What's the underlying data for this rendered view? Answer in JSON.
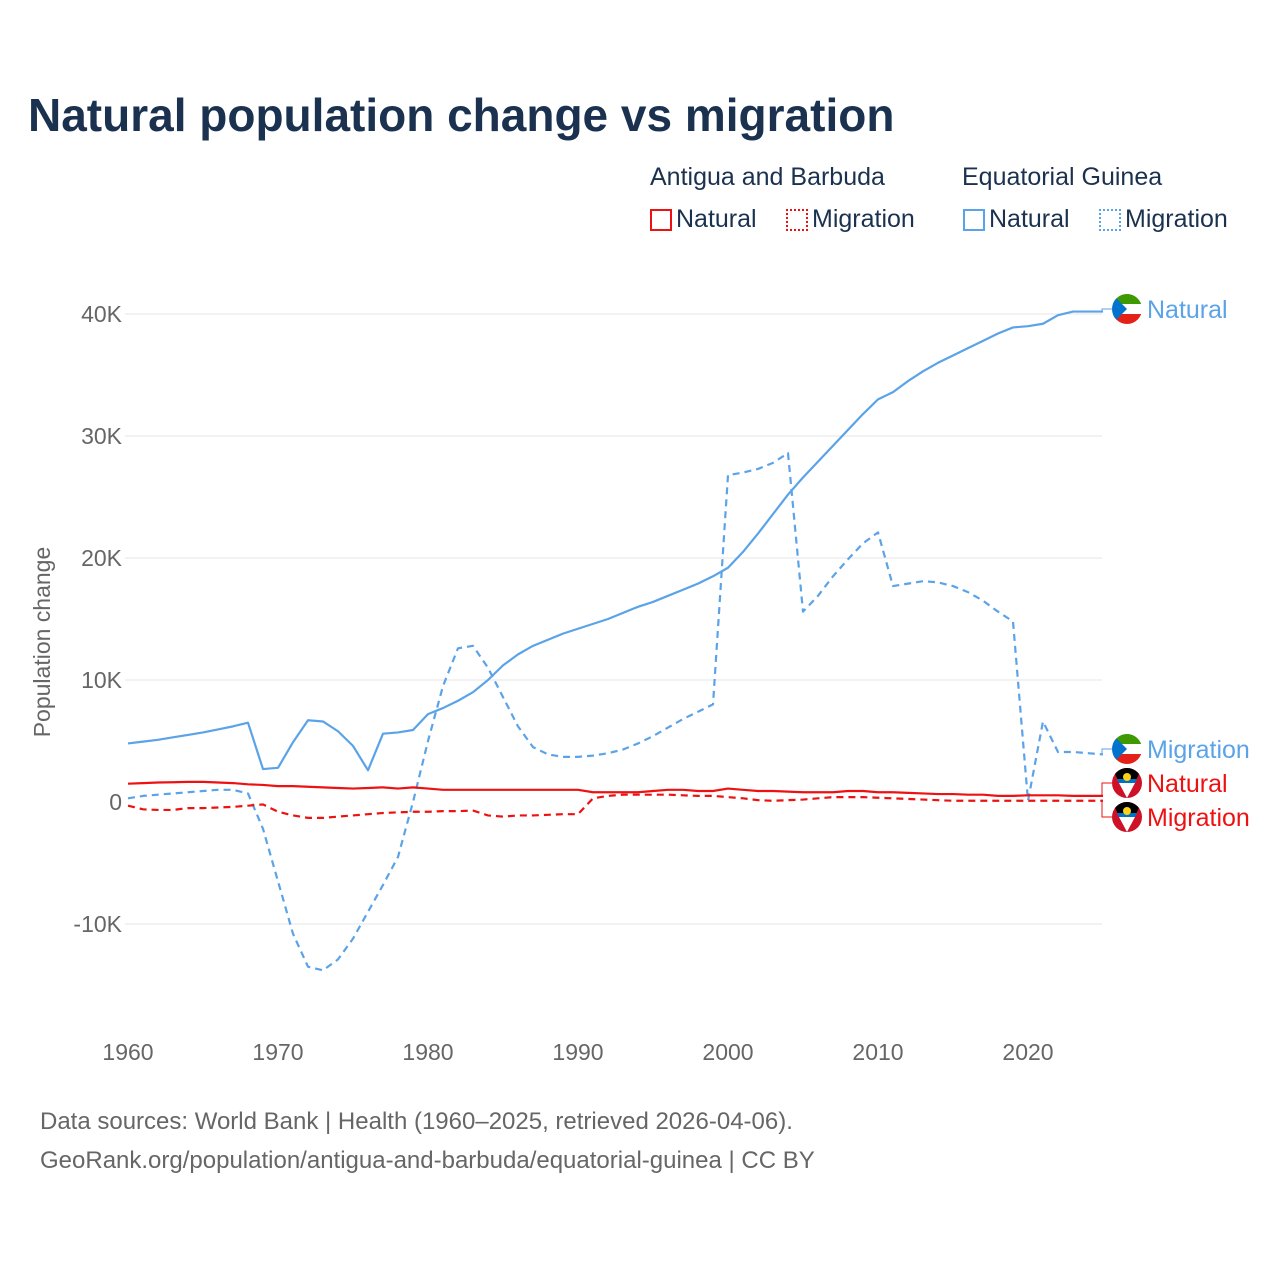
{
  "title": "Natural population change vs migration",
  "legend": {
    "groups": [
      {
        "name": "Antigua and Barbuda",
        "items": [
          {
            "label": "Natural",
            "style": "solid"
          },
          {
            "label": "Migration",
            "style": "dotted"
          }
        ],
        "color": "#ee1111"
      },
      {
        "name": "Equatorial Guinea",
        "items": [
          {
            "label": "Natural",
            "style": "solid"
          },
          {
            "label": "Migration",
            "style": "dotted"
          }
        ],
        "color": "#5ba3e8"
      }
    ]
  },
  "source_line1": "Data sources: World Bank | Health (1960–2025, retrieved 2026-04-06).",
  "source_line2": "GeoRank.org/population/antigua-and-barbuda/equatorial-guinea | CC BY",
  "chart_data": {
    "type": "line",
    "title": "Natural population change vs migration",
    "xlabel": "",
    "ylabel": "Population change",
    "xlim": [
      1960,
      2025
    ],
    "ylim": [
      -15000,
      42000
    ],
    "x_ticks": [
      1960,
      1970,
      1980,
      1990,
      2000,
      2010,
      2020
    ],
    "y_ticks": [
      {
        "v": -10000,
        "label": "-10K"
      },
      {
        "v": 0,
        "label": "0"
      },
      {
        "v": 10000,
        "label": "10K"
      },
      {
        "v": 20000,
        "label": "20K"
      },
      {
        "v": 30000,
        "label": "30K"
      },
      {
        "v": 40000,
        "label": "40K"
      }
    ],
    "grid": true,
    "series": [
      {
        "name": "Equatorial Guinea Natural",
        "end_label": "Natural",
        "color": "#5ba3e8",
        "dash": false,
        "flag": "gq",
        "values": [
          4.8,
          4.95,
          5.1,
          5.3,
          5.5,
          5.7,
          5.95,
          6.2,
          6.5,
          2.7,
          2.8,
          4.9,
          6.7,
          6.6,
          5.8,
          4.6,
          2.6,
          5.6,
          5.7,
          5.9,
          7.2,
          7.7,
          8.3,
          9.0,
          10.0,
          11.2,
          12.1,
          12.8,
          13.3,
          13.8,
          14.2,
          14.6,
          15.0,
          15.5,
          16.0,
          16.4,
          16.9,
          17.4,
          17.9,
          18.5,
          19.2,
          20.5,
          22.0,
          23.6,
          25.2,
          26.6,
          27.9,
          29.2,
          30.5,
          31.8,
          33.0,
          33.6,
          34.5,
          35.3,
          36.0,
          36.6,
          37.2,
          37.8,
          38.4,
          38.9,
          39.0,
          39.2,
          39.9,
          40.2,
          40.2,
          40.2
        ]
      },
      {
        "name": "Equatorial Guinea Migration",
        "end_label": "Migration",
        "color": "#5ba3e8",
        "dash": true,
        "flag": "gq",
        "values": [
          0.3,
          0.5,
          0.6,
          0.7,
          0.8,
          0.9,
          1.0,
          1.0,
          0.7,
          -2.2,
          -6.5,
          -10.8,
          -13.5,
          -13.8,
          -12.9,
          -11.2,
          -9.0,
          -6.8,
          -4.5,
          0.0,
          5.0,
          9.5,
          12.6,
          12.8,
          11.0,
          8.6,
          6.2,
          4.5,
          3.9,
          3.7,
          3.7,
          3.8,
          4.0,
          4.3,
          4.8,
          5.4,
          6.1,
          6.8,
          7.4,
          8.0,
          26.8,
          27.0,
          27.3,
          27.8,
          28.6,
          15.6,
          16.9,
          18.5,
          19.9,
          21.2,
          22.1,
          17.7,
          17.9,
          18.1,
          18.0,
          17.7,
          17.2,
          16.5,
          15.6,
          14.8,
          0.1,
          6.6,
          4.1,
          4.1,
          4.0,
          3.9
        ]
      },
      {
        "name": "Antigua and Barbuda Natural",
        "end_label": "Natural",
        "color": "#ee1111",
        "dash": false,
        "flag": "ag",
        "values": [
          1.5,
          1.55,
          1.6,
          1.62,
          1.65,
          1.65,
          1.6,
          1.55,
          1.45,
          1.4,
          1.3,
          1.3,
          1.25,
          1.2,
          1.15,
          1.1,
          1.15,
          1.2,
          1.1,
          1.2,
          1.1,
          1.0,
          1.0,
          1.0,
          1.0,
          1.0,
          1.0,
          1.0,
          1.0,
          1.0,
          1.0,
          0.8,
          0.8,
          0.8,
          0.8,
          0.9,
          1.0,
          1.0,
          0.9,
          0.9,
          1.1,
          1.0,
          0.9,
          0.9,
          0.85,
          0.8,
          0.8,
          0.8,
          0.9,
          0.9,
          0.8,
          0.8,
          0.75,
          0.7,
          0.65,
          0.65,
          0.6,
          0.6,
          0.5,
          0.5,
          0.55,
          0.55,
          0.55,
          0.5,
          0.5,
          0.5
        ]
      },
      {
        "name": "Antigua and Barbuda Migration",
        "end_label": "Migration",
        "color": "#ee1111",
        "dash": true,
        "flag": "ag",
        "values": [
          -0.3,
          -0.6,
          -0.65,
          -0.65,
          -0.5,
          -0.5,
          -0.45,
          -0.4,
          -0.3,
          -0.2,
          -0.8,
          -1.1,
          -1.3,
          -1.3,
          -1.2,
          -1.1,
          -1.0,
          -0.9,
          -0.85,
          -0.8,
          -0.8,
          -0.75,
          -0.75,
          -0.7,
          -1.1,
          -1.2,
          -1.1,
          -1.1,
          -1.05,
          -1.0,
          -1.0,
          0.3,
          0.5,
          0.6,
          0.6,
          0.6,
          0.6,
          0.55,
          0.5,
          0.5,
          0.4,
          0.3,
          0.15,
          0.1,
          0.15,
          0.2,
          0.3,
          0.4,
          0.4,
          0.4,
          0.35,
          0.3,
          0.25,
          0.2,
          0.15,
          0.1,
          0.1,
          0.1,
          0.1,
          0.1,
          0.1,
          0.1,
          0.1,
          0.1,
          0.1,
          0.1
        ]
      }
    ]
  }
}
